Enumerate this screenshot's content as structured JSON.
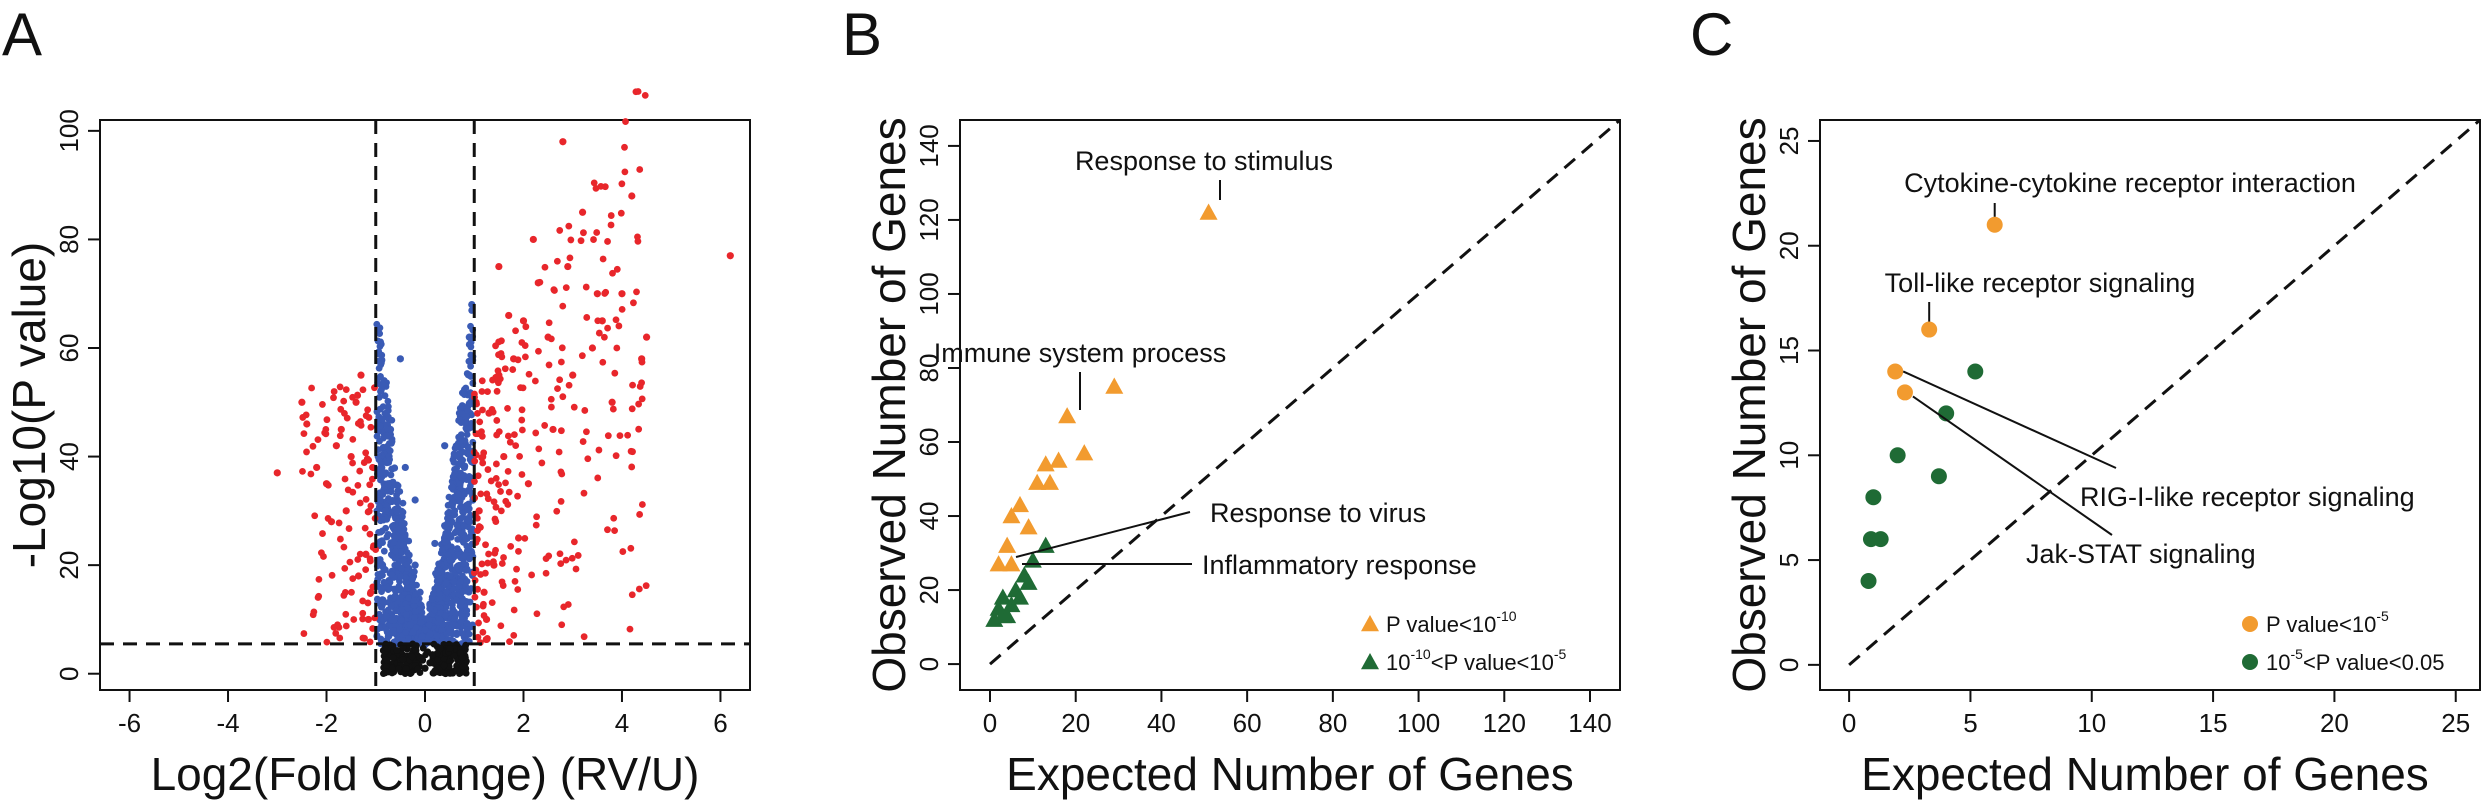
{
  "chart_data": [
    {
      "panel": "A",
      "type": "scatter",
      "xlabel": "Log2(Fold Change) (RV/U)",
      "ylabel": "-Log10(P value)",
      "xlim": [
        -6.6,
        6.6
      ],
      "ylim": [
        -3,
        102
      ],
      "xticks": [
        -6,
        -4,
        -2,
        0,
        2,
        4,
        6
      ],
      "yticks": [
        0,
        20,
        40,
        60,
        80,
        100
      ],
      "thresholds": {
        "x": [
          -1,
          1
        ],
        "y": 5.5
      },
      "colors": {
        "up": "#e8262b",
        "down": "#e8262b",
        "ns": "#3a5bb5",
        "low": "#111111"
      },
      "series": [
        {
          "key": "ns",
          "points": [
            [
              -0.3,
              9
            ],
            [
              -0.5,
              14
            ],
            [
              -0.2,
              20
            ],
            [
              -0.6,
              25
            ],
            [
              -0.8,
              30
            ],
            [
              -0.4,
              38
            ],
            [
              -0.7,
              45
            ],
            [
              -0.9,
              52
            ],
            [
              -0.5,
              58
            ],
            [
              -0.2,
              32
            ],
            [
              0.3,
              10
            ],
            [
              0.5,
              18
            ],
            [
              0.2,
              24
            ],
            [
              0.6,
              30
            ],
            [
              0.8,
              38
            ],
            [
              0.4,
              42
            ],
            [
              0.7,
              48
            ],
            [
              0.9,
              55
            ],
            [
              0.9,
              62
            ],
            [
              0.95,
              68
            ],
            [
              0.1,
              12
            ],
            [
              -0.1,
              15
            ],
            [
              -0.95,
              40
            ],
            [
              0.85,
              45
            ],
            [
              -0.75,
              35
            ]
          ]
        },
        {
          "key": "up",
          "points": [
            [
              1.5,
              75
            ],
            [
              2.0,
              65
            ],
            [
              2.8,
              98
            ],
            [
              3.6,
              65
            ],
            [
              4.2,
              88
            ],
            [
              6.2,
              77
            ],
            [
              3.0,
              55
            ],
            [
              3.5,
              70
            ],
            [
              2.5,
              62
            ],
            [
              1.8,
              58
            ],
            [
              4.5,
              62
            ],
            [
              4.0,
              70
            ],
            [
              2.2,
              80
            ],
            [
              3.2,
              85
            ],
            [
              1.3,
              48
            ],
            [
              1.6,
              40
            ],
            [
              2.1,
              35
            ],
            [
              1.4,
              20
            ],
            [
              1.2,
              15
            ],
            [
              1.1,
              30
            ],
            [
              1.5,
              55
            ],
            [
              2.3,
              72
            ],
            [
              3.8,
              50
            ],
            [
              4.4,
              58
            ],
            [
              2.9,
              75
            ],
            [
              1.7,
              66
            ],
            [
              2.6,
              45
            ],
            [
              3.4,
              60
            ],
            [
              1.9,
              25
            ],
            [
              1.25,
              10
            ]
          ]
        },
        {
          "key": "down",
          "points": [
            [
              -2.5,
              50
            ],
            [
              -3.0,
              37
            ],
            [
              -2.4,
              46
            ],
            [
              -1.8,
              42
            ],
            [
              -1.5,
              40
            ],
            [
              -1.2,
              22
            ],
            [
              -1.1,
              15
            ],
            [
              -1.6,
              30
            ],
            [
              -2.0,
              35
            ],
            [
              -1.3,
              55
            ],
            [
              -1.4,
              50
            ],
            [
              -1.7,
              45
            ],
            [
              -2.2,
              38
            ],
            [
              -1.9,
              28
            ],
            [
              -1.15,
              10
            ],
            [
              -1.35,
              18
            ]
          ]
        },
        {
          "key": "low",
          "points": [
            [
              0,
              1
            ],
            [
              0.1,
              2
            ],
            [
              -0.1,
              3
            ],
            [
              0.2,
              0.5
            ],
            [
              -0.2,
              1.5
            ],
            [
              0.05,
              4
            ],
            [
              -0.05,
              2.5
            ],
            [
              0.15,
              3.5
            ],
            [
              -0.15,
              0.8
            ]
          ]
        }
      ]
    },
    {
      "panel": "B",
      "type": "scatter",
      "xlabel": "Expected Number of Genes",
      "ylabel": "Observed Number of Genes",
      "xlim": [
        -7,
        147
      ],
      "ylim": [
        -7,
        147
      ],
      "xticks": [
        0,
        20,
        40,
        60,
        80,
        100,
        120,
        140
      ],
      "yticks": [
        0,
        20,
        40,
        60,
        80,
        100,
        120,
        140
      ],
      "marker": "triangle",
      "series": [
        {
          "key": "p1",
          "color": "#f29b2f",
          "legend": {
            "main": "P value<10",
            "sup": "-10"
          },
          "points": [
            [
              51,
              122
            ],
            [
              29,
              75
            ],
            [
              18,
              67
            ],
            [
              22,
              57
            ],
            [
              16,
              55
            ],
            [
              13,
              54
            ],
            [
              14,
              49
            ],
            [
              11,
              49
            ],
            [
              7,
              43
            ],
            [
              9,
              37
            ],
            [
              5,
              40
            ],
            [
              4,
              32
            ],
            [
              2,
              27
            ],
            [
              5,
              27
            ]
          ]
        },
        {
          "key": "p2",
          "color": "#1f6b35",
          "legend": {
            "pre": "10",
            "presup": "-10",
            "main": "<P value<10",
            "sup": "-5"
          },
          "points": [
            [
              13,
              32
            ],
            [
              10,
              28
            ],
            [
              8,
              24
            ],
            [
              9,
              22
            ],
            [
              6,
              20
            ],
            [
              3,
              18
            ],
            [
              5,
              16
            ],
            [
              2,
              15
            ],
            [
              3,
              13
            ],
            [
              1,
              12
            ],
            [
              4,
              13
            ],
            [
              7,
              18
            ]
          ]
        }
      ],
      "annotations": [
        {
          "text": "Response to stimulus",
          "x": 50,
          "y": 121
        },
        {
          "text": "Immune system process",
          "x": 18,
          "y": 67
        },
        {
          "text": "Response to virus",
          "x": 3,
          "y": 28
        },
        {
          "text": "Inflammatory response",
          "x": 4,
          "y": 26
        }
      ]
    },
    {
      "panel": "C",
      "type": "scatter",
      "xlabel": "Expected Number of Genes",
      "ylabel": "Observed Number of Genes",
      "xlim": [
        -1.2,
        26
      ],
      "ylim": [
        -1.2,
        26
      ],
      "xticks": [
        0,
        5,
        10,
        15,
        20,
        25
      ],
      "yticks": [
        0,
        5,
        10,
        15,
        20,
        25
      ],
      "marker": "circle",
      "series": [
        {
          "key": "c1",
          "color": "#f29b2f",
          "legend": {
            "main": "P value<10",
            "sup": "-5"
          },
          "points": [
            [
              6.0,
              21
            ],
            [
              3.3,
              16
            ],
            [
              1.9,
              14
            ],
            [
              2.3,
              13
            ]
          ]
        },
        {
          "key": "c2",
          "color": "#1f6b35",
          "legend": {
            "pre": "10",
            "presup": "-5",
            "main": "<P value<0.05"
          },
          "points": [
            [
              5.2,
              14
            ],
            [
              4.0,
              12
            ],
            [
              2.0,
              10
            ],
            [
              3.7,
              9
            ],
            [
              1.0,
              8
            ],
            [
              0.9,
              6
            ],
            [
              1.3,
              6
            ],
            [
              0.8,
              4
            ]
          ]
        }
      ],
      "annotations": [
        {
          "text": "Cytokine-cytokine receptor interaction",
          "x": 6.0,
          "y": 21
        },
        {
          "text": "Toll-like receptor signaling",
          "x": 3.3,
          "y": 16
        },
        {
          "text": "RIG-I-like receptor signaling",
          "x": 1.9,
          "y": 14
        },
        {
          "text": "Jak-STAT signaling",
          "x": 2.3,
          "y": 13
        }
      ]
    }
  ]
}
